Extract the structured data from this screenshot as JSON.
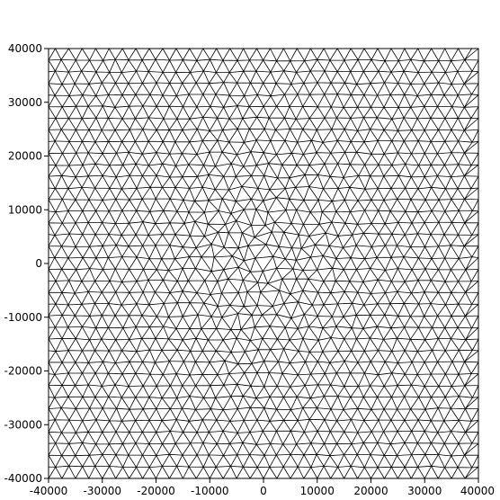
{
  "chart_data": {
    "type": "mesh",
    "title": "",
    "xlabel": "",
    "ylabel": "",
    "xlim": [
      -40000,
      40000
    ],
    "ylim": [
      -40000,
      40000
    ],
    "grid": false,
    "x_ticks": [
      "-40000",
      "-30000",
      "-20000",
      "-10000",
      "0",
      "10000",
      "20000",
      "30000",
      "40000"
    ],
    "y_ticks": [
      "40000",
      "30000",
      "20000",
      "10000",
      "0",
      "-10000",
      "-20000",
      "-30000",
      "-40000"
    ],
    "mesh": {
      "element_type": "triangle",
      "nominal_spacing": 2500,
      "domain": [
        [
          -40000,
          -40000
        ],
        [
          40000,
          -40000
        ],
        [
          40000,
          40000
        ],
        [
          -40000,
          40000
        ]
      ]
    }
  },
  "colors": {
    "background": "#ffffff",
    "frame": "#000000",
    "mesh_edge": "#000000"
  }
}
